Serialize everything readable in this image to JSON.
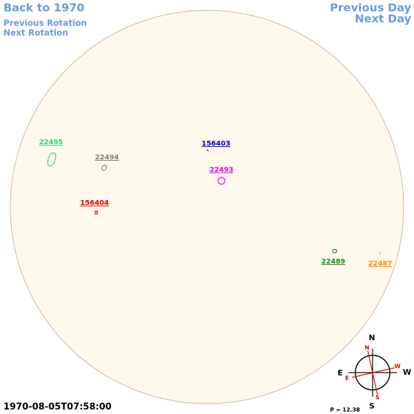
{
  "nav": {
    "back": "Back to 1970",
    "prev_rotation": "Previous Rotation",
    "next_rotation": "Next Rotation",
    "prev_day": "Previous Day",
    "next_day": "Next Day"
  },
  "regions": [
    {
      "label": "22495",
      "color": "#2fd67a"
    },
    {
      "label": "22494",
      "color": "#808080"
    },
    {
      "label": "156403",
      "color": "#0000cc"
    },
    {
      "label": "22493",
      "color": "#ee00ee"
    },
    {
      "label": "156404",
      "color": "#dd0000"
    },
    {
      "label": "22489",
      "color": "#1e8a1e"
    },
    {
      "label": "22487",
      "color": "#ff8c00"
    }
  ],
  "timestamp": "1970-08-05T07:58:00",
  "compass": {
    "n": "N",
    "s": "S",
    "e": "E",
    "w": "W",
    "red_n": "N",
    "red_s": "S",
    "red_e": "E",
    "red_w": "W",
    "p_angle": "P = 12.38"
  }
}
